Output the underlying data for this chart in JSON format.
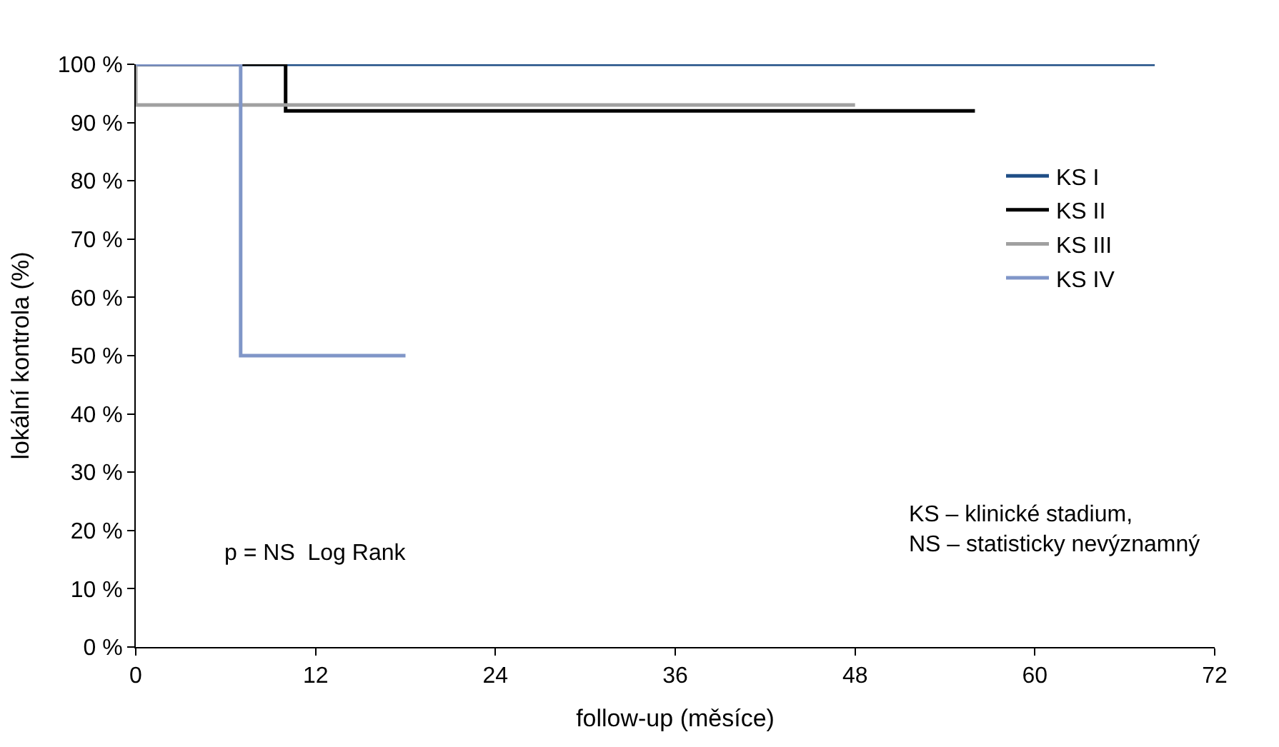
{
  "chart_data": {
    "type": "step",
    "xlabel": "follow-up (měsíce)",
    "ylabel": "lokální kontrola (%)",
    "xlim": [
      0,
      72
    ],
    "xticks": [
      0,
      12,
      24,
      36,
      48,
      60,
      72
    ],
    "ylim": [
      0,
      100
    ],
    "yticks": [
      {
        "value": 0,
        "label": "0 %"
      },
      {
        "value": 10,
        "label": "10 %"
      },
      {
        "value": 20,
        "label": "20 %"
      },
      {
        "value": 30,
        "label": "30 %"
      },
      {
        "value": 40,
        "label": "40 %"
      },
      {
        "value": 50,
        "label": "50 %"
      },
      {
        "value": 60,
        "label": "60 %"
      },
      {
        "value": 70,
        "label": "70 %"
      },
      {
        "value": 80,
        "label": "80 %"
      },
      {
        "value": 90,
        "label": "90 %"
      },
      {
        "value": 100,
        "label": "100 %"
      }
    ],
    "legend": "right",
    "marker": "none",
    "line_style": "solid",
    "series": [
      {
        "name": "KS I",
        "color": "#1f4e86",
        "x": [
          0,
          68
        ],
        "values": [
          100,
          100
        ]
      },
      {
        "name": "KS II",
        "color": "#000000",
        "x": [
          0,
          10,
          56
        ],
        "values": [
          100,
          92,
          92
        ]
      },
      {
        "name": "KS III",
        "color": "#a0a0a0",
        "x": [
          0,
          0,
          48
        ],
        "values": [
          100,
          93,
          93
        ]
      },
      {
        "name": "KS IV",
        "color": "#8096c8",
        "x": [
          0,
          7,
          18
        ],
        "values": [
          100,
          50,
          50
        ]
      }
    ],
    "annotations": [
      "p = NS  Log Rank",
      "KS – klinické stadium,\nNS – statisticky nevýznamný"
    ]
  }
}
